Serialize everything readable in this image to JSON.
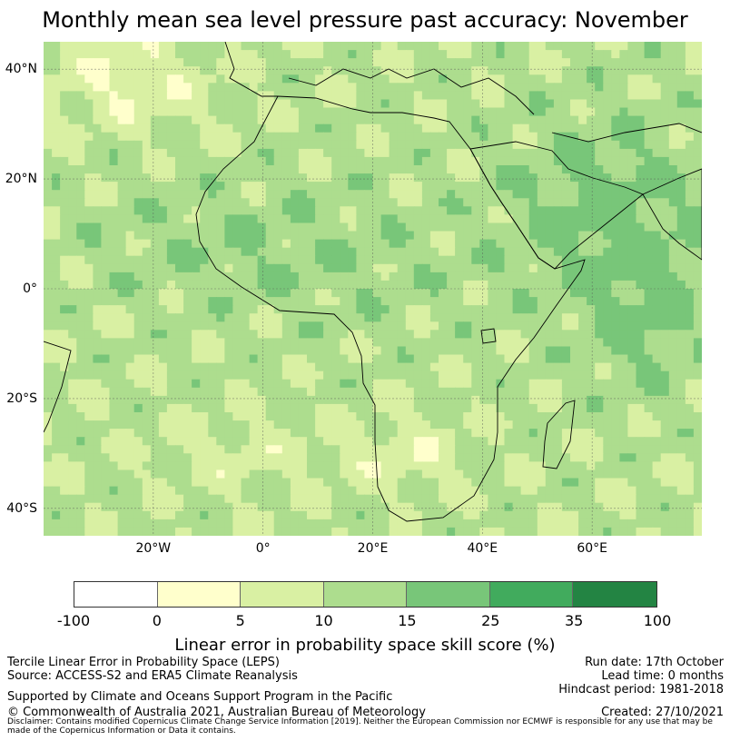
{
  "title": "Monthly mean sea level pressure past accuracy: November",
  "map": {
    "lat_range": [
      -45,
      45
    ],
    "lon_range": [
      -40,
      80
    ],
    "lat_ticks": [
      "40°N",
      "20°N",
      "0°",
      "20°S",
      "40°S"
    ],
    "lon_ticks": [
      "20°W",
      "0°",
      "20°E",
      "40°E",
      "60°E"
    ],
    "lat_tick_values": [
      40,
      20,
      0,
      -20,
      -40
    ],
    "lon_tick_values": [
      -20,
      0,
      20,
      40,
      60
    ],
    "gridlines": true
  },
  "colorbar": {
    "bounds": [
      "-100",
      "0",
      "5",
      "10",
      "15",
      "25",
      "35",
      "100"
    ],
    "colors": [
      "#ffffff",
      "#ffffcc",
      "#d9f0a3",
      "#addd8e",
      "#78c679",
      "#41ab5d",
      "#238443"
    ],
    "label": "Linear error in probability space skill score (%)"
  },
  "footer": {
    "left": [
      "Tercile Linear Error in Probability Space (LEPS)",
      "Source: ACCESS-S2 and ERA5 Climate Reanalysis"
    ],
    "right": [
      "Run date: 17th October",
      "Lead time: 0 months",
      "Hindcast period: 1981-2018"
    ],
    "support": "Supported by Climate and Oceans Support Program in the Pacific",
    "copyright": "© Commonwealth of Australia 2021, Australian Bureau of Meteorology",
    "created": "Created: 27/10/2021",
    "disclaimer": "Disclaimer: Contains modified Copernicus Climate Change Service Information [2019]. Neither the European Commission nor ECMWF is responsible for any use that may be made of the Copernicus Information or Data it contains."
  }
}
